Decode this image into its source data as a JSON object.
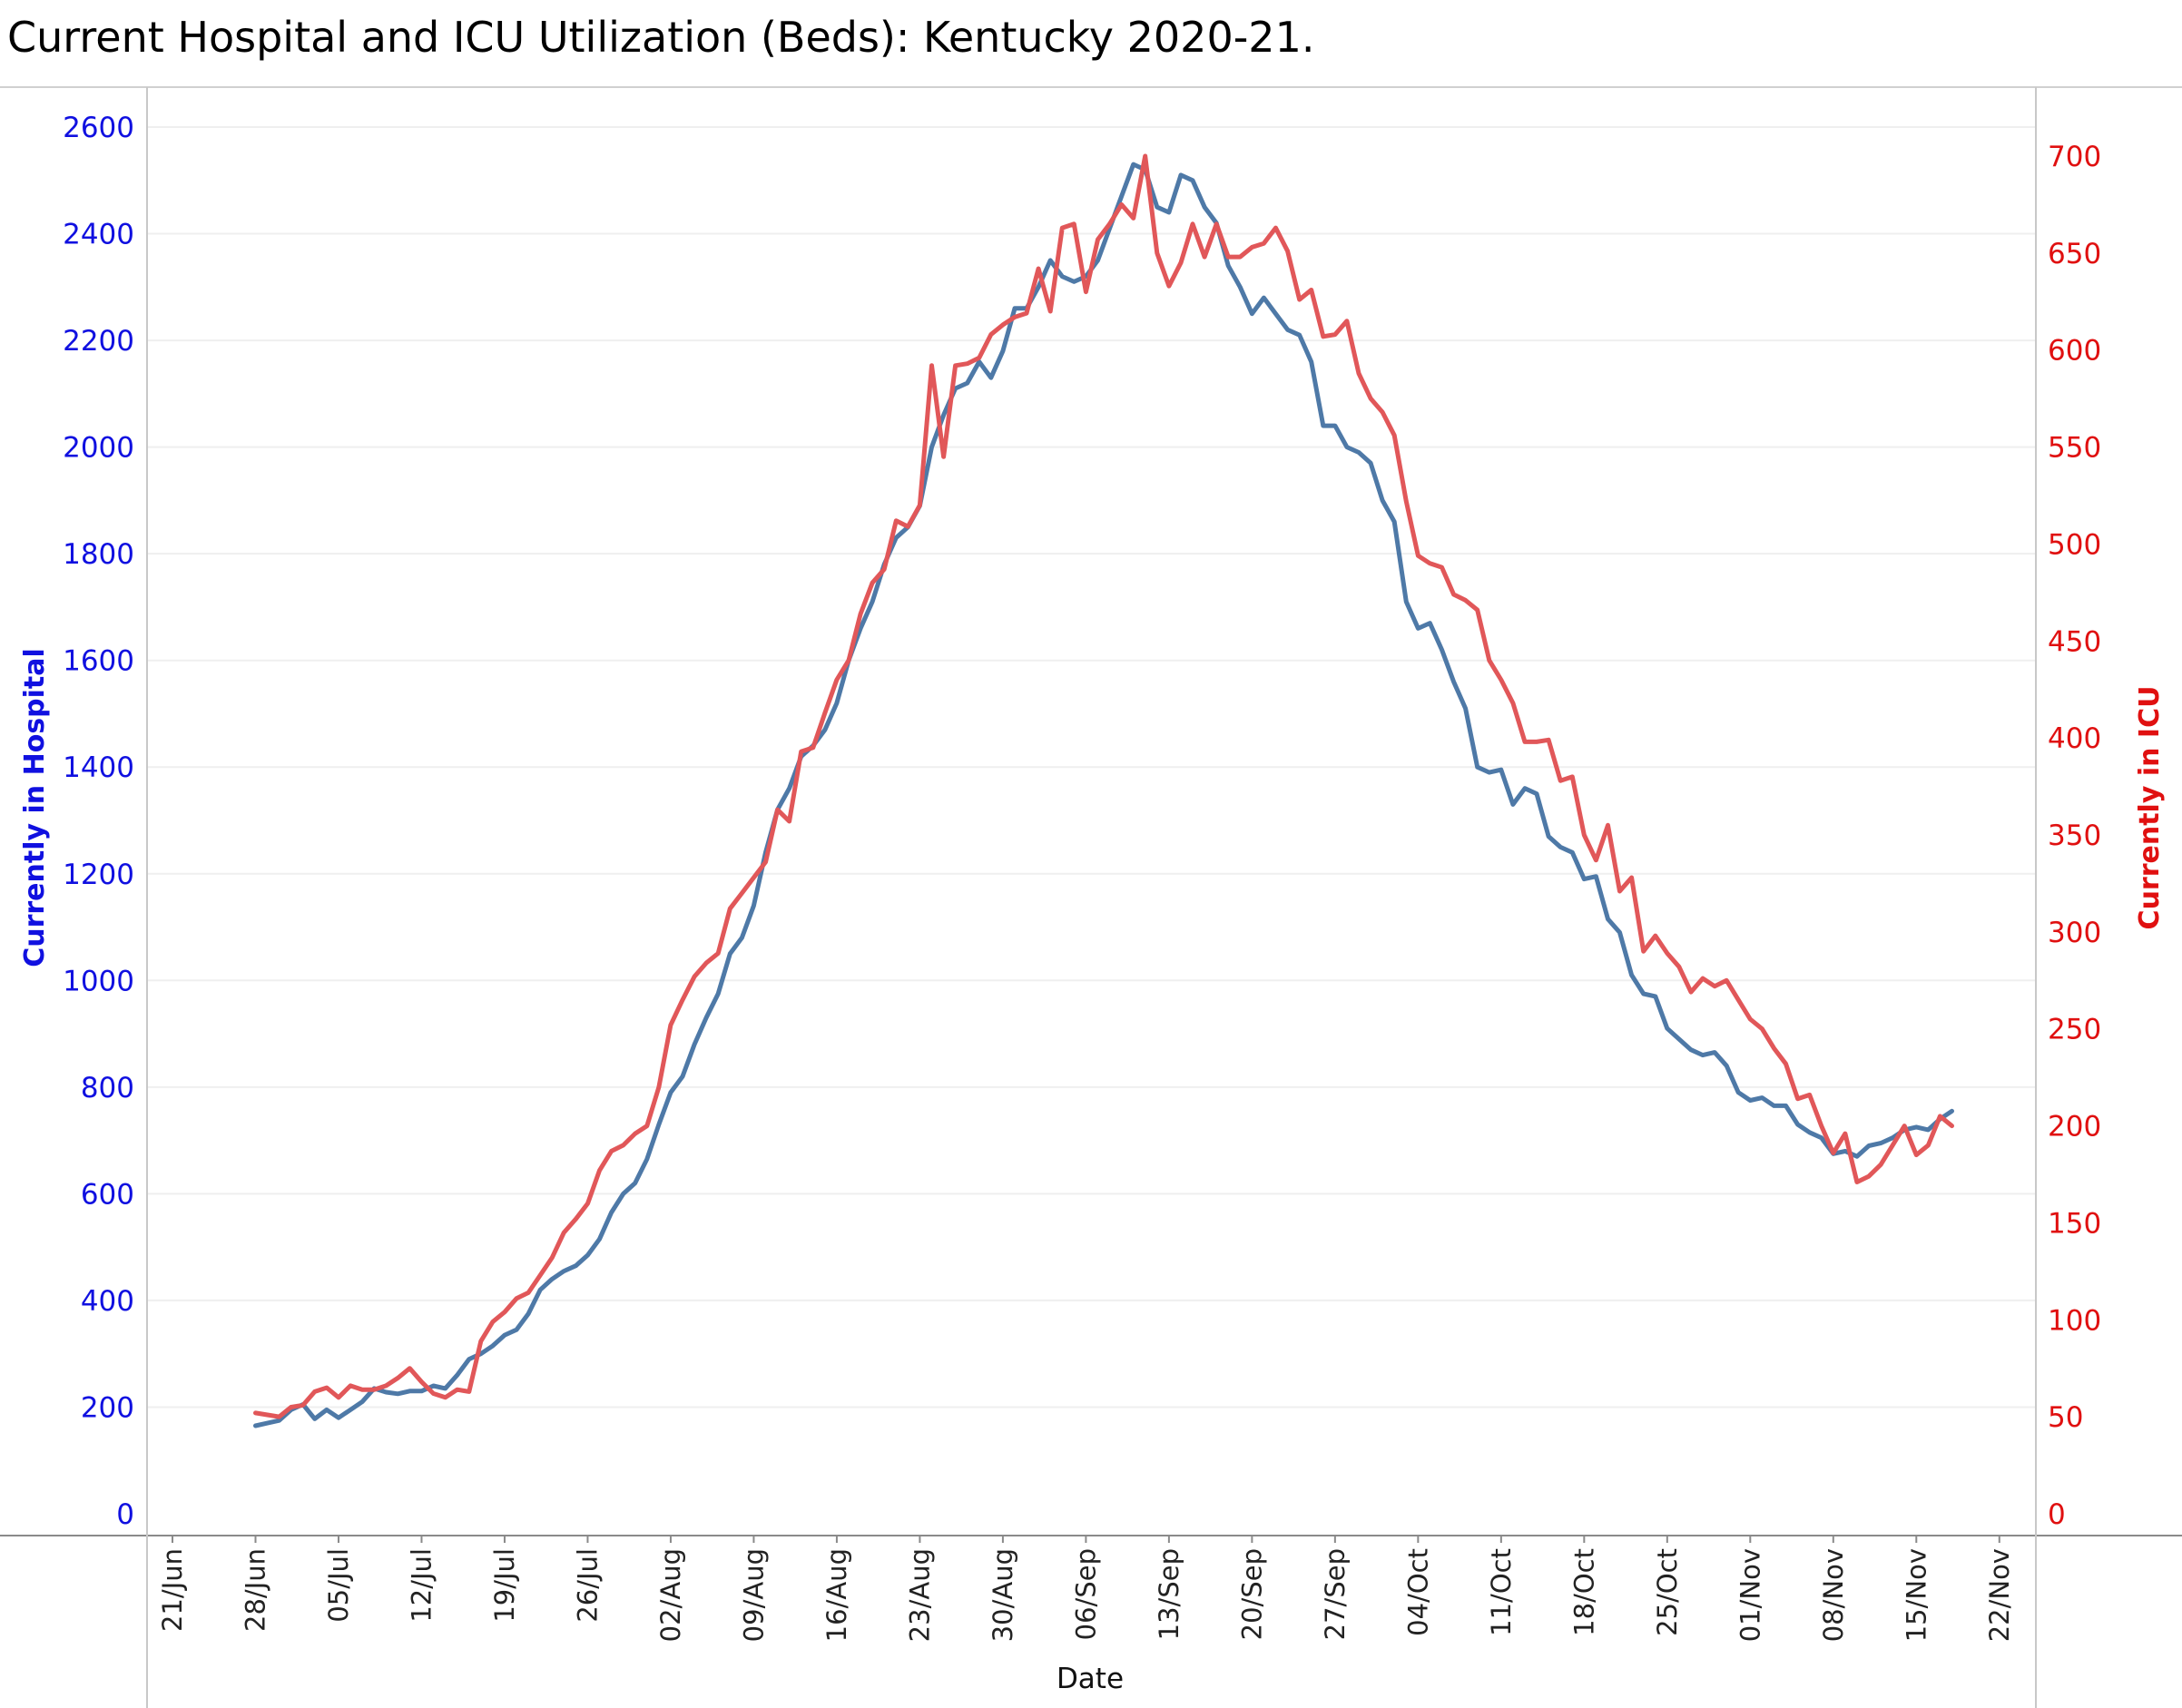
{
  "chart_data": {
    "type": "line",
    "title": "Current Hospital and ICU Utilization (Beds):  Kentucky 2020-21.",
    "xlabel": "Date",
    "ylabel_left": "Currently in Hospital",
    "ylabel_right": "Currently in ICU",
    "ylim_left": [
      0,
      2600
    ],
    "ylim_right": [
      0,
      730
    ],
    "yticks_left": [
      0,
      200,
      400,
      600,
      800,
      1000,
      1200,
      1400,
      1600,
      1800,
      2000,
      2200,
      2400,
      2600
    ],
    "yticks_right": [
      0,
      50,
      100,
      150,
      200,
      250,
      300,
      350,
      400,
      450,
      500,
      550,
      600,
      650,
      700
    ],
    "x_tick_labels": [
      "21/Jun",
      "28/Jun",
      "05/Jul",
      "12/Jul",
      "19/Jul",
      "26/Jul",
      "02/Aug",
      "09/Aug",
      "16/Aug",
      "23/Aug",
      "30/Aug",
      "06/Sep",
      "13/Sep",
      "20/Sep",
      "27/Sep",
      "04/Oct",
      "11/Oct",
      "18/Oct",
      "25/Oct",
      "01/Nov",
      "08/Nov",
      "15/Nov",
      "22/Nov"
    ],
    "x_start": "2021-06-28",
    "grid": true,
    "series": [
      {
        "name": "Currently in Hospital",
        "axis": "left",
        "color": "#4e79a7",
        "values": [
          165,
          170,
          175,
          195,
          205,
          178,
          195,
          180,
          195,
          210,
          235,
          228,
          225,
          230,
          230,
          240,
          235,
          260,
          290,
          300,
          315,
          335,
          345,
          375,
          420,
          440,
          455,
          465,
          485,
          515,
          565,
          600,
          620,
          665,
          730,
          790,
          820,
          880,
          930,
          975,
          1050,
          1080,
          1140,
          1240,
          1320,
          1360,
          1420,
          1440,
          1470,
          1520,
          1600,
          1660,
          1710,
          1780,
          1830,
          1850,
          1890,
          2000,
          2060,
          2110,
          2120,
          2160,
          2130,
          2180,
          2260,
          2260,
          2300,
          2350,
          2320,
          2310,
          2320,
          2350,
          2410,
          2470,
          2530,
          2520,
          2450,
          2440,
          2510,
          2500,
          2450,
          2420,
          2340,
          2300,
          2250,
          2280,
          2250,
          2220,
          2210,
          2160,
          2040,
          2040,
          2000,
          1990,
          1970,
          1900,
          1860,
          1710,
          1660,
          1670,
          1620,
          1560,
          1510,
          1400,
          1390,
          1395,
          1330,
          1360,
          1350,
          1270,
          1250,
          1240,
          1190,
          1195,
          1115,
          1090,
          1010,
          975,
          970,
          910,
          890,
          870,
          860,
          865,
          840,
          790,
          775,
          780,
          765,
          765,
          730,
          715,
          705,
          675,
          680,
          670,
          690,
          695,
          705,
          720,
          725,
          720,
          740,
          755
        ]
      },
      {
        "name": "Currently in ICU",
        "axis": "right",
        "color": "#e15759",
        "values": [
          52,
          51,
          50,
          55,
          56,
          63,
          65,
          60,
          66,
          64,
          64,
          66,
          70,
          75,
          68,
          62,
          60,
          64,
          63,
          89,
          99,
          104,
          111,
          114,
          123,
          132,
          145,
          152,
          160,
          177,
          187,
          190,
          196,
          200,
          220,
          252,
          265,
          277,
          284,
          289,
          312,
          320,
          328,
          336,
          363,
          357,
          393,
          395,
          413,
          430,
          440,
          464,
          480,
          487,
          512,
          509,
          520,
          592,
          545,
          592,
          593,
          596,
          608,
          613,
          617,
          619,
          642,
          620,
          663,
          665,
          630,
          657,
          665,
          675,
          668,
          700,
          650,
          633,
          645,
          665,
          648,
          665,
          648,
          648,
          653,
          655,
          663,
          651,
          626,
          631,
          607,
          608,
          615,
          588,
          575,
          568,
          556,
          522,
          494,
          490,
          488,
          474,
          471,
          466,
          440,
          430,
          418,
          398,
          398,
          399,
          378,
          380,
          350,
          337,
          355,
          321,
          328,
          290,
          298,
          289,
          282,
          269,
          276,
          272,
          275,
          265,
          255,
          250,
          240,
          232,
          214,
          216,
          200,
          186,
          196,
          171,
          174,
          180,
          190,
          200,
          185,
          190,
          205,
          200
        ]
      }
    ]
  }
}
